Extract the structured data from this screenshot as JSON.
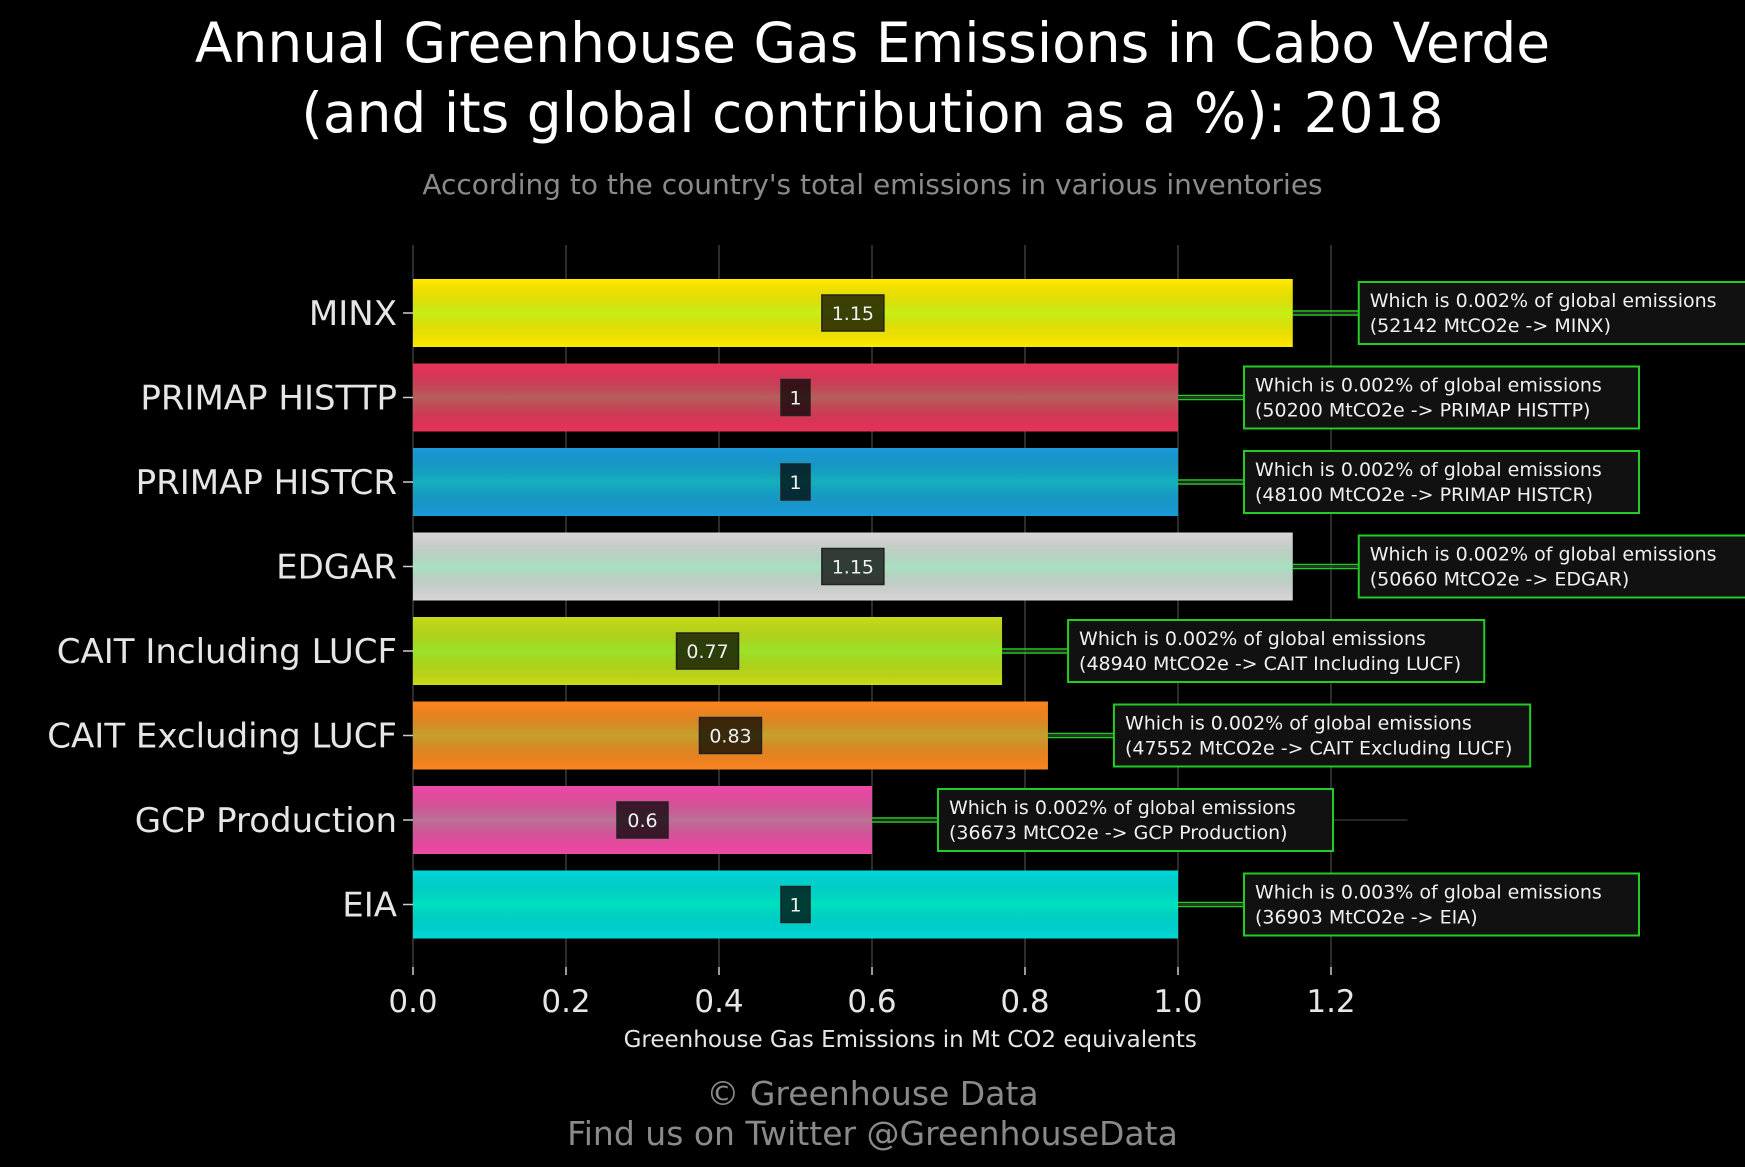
{
  "title_line1": "Annual Greenhouse Gas Emissions in Cabo Verde",
  "title_line2": "(and its global contribution as a %): 2018",
  "subtitle": "According to the country's total emissions in various inventories",
  "footer_line1": "© Greenhouse Data",
  "footer_line2": "Find us on Twitter @GreenhouseData",
  "chart_data": {
    "type": "bar",
    "orientation": "horizontal",
    "xlabel": "Greenhouse Gas Emissions in Mt CO2 equivalents",
    "ylabel": "",
    "xlim": [
      0,
      1.3
    ],
    "xticks": [
      "0.0",
      "0.2",
      "0.4",
      "0.6",
      "0.8",
      "1.0",
      "1.2"
    ],
    "xtick_values": [
      0,
      0.2,
      0.4,
      0.6,
      0.8,
      1.0,
      1.2
    ],
    "grid": true,
    "bars": [
      {
        "category": "MINX",
        "value": 1.15,
        "label": "1.15",
        "color": "#ffea00",
        "ann1": "Which is 0.002% of global emissions",
        "ann2": "(52142 MtCO2e -> MINX)"
      },
      {
        "category": "PRIMAP HISTTP",
        "value": 1.0,
        "label": "1",
        "color": "#e8335a",
        "ann1": "Which is 0.002% of global emissions",
        "ann2": "(50200 MtCO2e -> PRIMAP HISTTP)"
      },
      {
        "category": "PRIMAP HISTCR",
        "value": 1.0,
        "label": "1",
        "color": "#1a9bd7",
        "ann1": "Which is 0.002% of global emissions",
        "ann2": "(48100 MtCO2e -> PRIMAP HISTCR)"
      },
      {
        "category": "EDGAR",
        "value": 1.15,
        "label": "1.15",
        "color": "#d8d8d8",
        "ann1": "Which is 0.002% of global emissions",
        "ann2": "(50660 MtCO2e -> EDGAR)"
      },
      {
        "category": "CAIT Including LUCF",
        "value": 0.77,
        "label": "0.77",
        "color": "#c6dc18",
        "ann1": "Which is 0.002% of global emissions",
        "ann2": "(48940 MtCO2e -> CAIT Including LUCF)"
      },
      {
        "category": "CAIT Excluding LUCF",
        "value": 0.83,
        "label": "0.83",
        "color": "#fb8620",
        "ann1": "Which is 0.002% of global emissions",
        "ann2": "(47552 MtCO2e -> CAIT Excluding LUCF)"
      },
      {
        "category": "GCP Production",
        "value": 0.6,
        "label": "0.6",
        "color": "#f04aa5",
        "ann1": "Which is 0.002% of global emissions",
        "ann2": "(36673 MtCO2e -> GCP Production)"
      },
      {
        "category": "EIA",
        "value": 1.0,
        "label": "1",
        "color": "#00d8d8",
        "ann1": "Which is 0.003% of global emissions",
        "ann2": "(36903 MtCO2e -> EIA)"
      }
    ],
    "annotation_border_color": "#22cc22",
    "annotation_bg_color": "#111111"
  }
}
